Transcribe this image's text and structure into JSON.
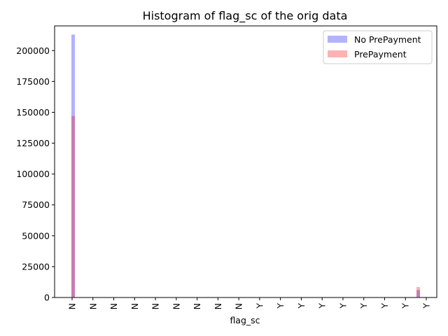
{
  "chart_data": {
    "type": "bar",
    "title": "Histogram of flag_sc of the orig data",
    "xlabel": "flag_sc",
    "ylabel": "",
    "ylim": [
      0,
      220000
    ],
    "yticks": [
      0,
      25000,
      50000,
      75000,
      100000,
      125000,
      150000,
      175000,
      200000
    ],
    "xtick_labels": [
      "N",
      "N",
      "N",
      "N",
      "N",
      "N",
      "N",
      "N",
      "N",
      "Y",
      "Y",
      "Y",
      "Y",
      "Y",
      "Y",
      "Y",
      "Y",
      "Y"
    ],
    "legend_position": "top-right",
    "grid": false,
    "series": [
      {
        "name": "No PrePayment",
        "color": "#0000ff",
        "opacity": 0.3,
        "bins": [
          {
            "bin": "N",
            "value": 213000
          },
          {
            "bin": "Y",
            "value": 6000
          }
        ]
      },
      {
        "name": "PrePayment",
        "color": "#ff0000",
        "opacity": 0.3,
        "bins": [
          {
            "bin": "N",
            "value": 147000
          },
          {
            "bin": "Y",
            "value": 8500
          }
        ]
      }
    ]
  }
}
